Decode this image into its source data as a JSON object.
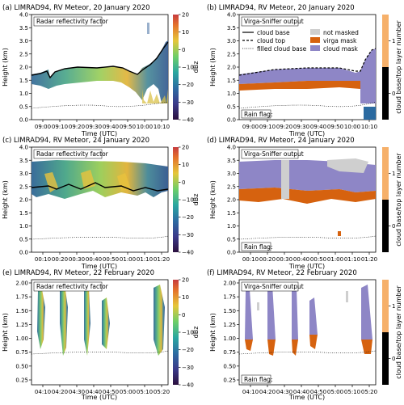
{
  "chart_data": [
    {
      "type": "heatmap",
      "title": "(a) LIMRAD94, RV Meteor, 20 January 2020",
      "box_label": "Radar reflectivity factor",
      "xlabel": "Time (UTC)",
      "ylabel": "Height (km)",
      "x_ticks": [
        "09:00",
        "09:10",
        "09:20",
        "09:30",
        "09:40",
        "09:50",
        "10:00",
        "10:10"
      ],
      "y_ticks": [
        "0.0",
        "0.5",
        "1.0",
        "1.5",
        "2.0",
        "2.5",
        "3.0",
        "3.5",
        "4.0"
      ],
      "ylim": [
        0,
        4.0
      ],
      "colorbar": {
        "label": "dBz",
        "ticks": [
          "20",
          "10",
          "0",
          "−10",
          "−20",
          "−30",
          "−40"
        ],
        "range": [
          -40,
          20
        ]
      }
    },
    {
      "type": "heatmap",
      "title": "(b) LIMRAD94, RV Meteor, 20 January 2020",
      "box_label": "Virga-Sniffer output",
      "xlabel": "Time (UTC)",
      "ylabel": "Height (km)",
      "x_ticks": [
        "09:00",
        "09:10",
        "09:20",
        "09:30",
        "09:40",
        "09:50",
        "10:00",
        "10:10"
      ],
      "y_ticks": [
        "0.0",
        "0.5",
        "1.0",
        "1.5",
        "2.0",
        "2.5",
        "3.0",
        "3.5",
        "4.0"
      ],
      "ylim": [
        0,
        4.0
      ],
      "rain_flag_label": "Rain flag:",
      "legend": {
        "lines": [
          "cloud base",
          "cloud top",
          "filled cloud base"
        ],
        "patches": [
          {
            "label": "not masked",
            "color": "#cfcfcf"
          },
          {
            "label": "virga mask",
            "color": "#d6620f"
          },
          {
            "label": "cloud mask",
            "color": "#8e86c6"
          }
        ]
      },
      "colorbar": {
        "label": "cloud base/top layer number",
        "ticks": [
          "1",
          "0"
        ]
      }
    },
    {
      "type": "heatmap",
      "title": "(c) LIMRAD94, RV Meteor, 24 January 2020",
      "box_label": "Radar reflectivity factor",
      "xlabel": "Time (UTC)",
      "ylabel": "Height (km)",
      "x_ticks": [
        "00:10",
        "00:20",
        "00:30",
        "00:40",
        "00:50",
        "01:00",
        "01:10",
        "01:20"
      ],
      "y_ticks": [
        "0.0",
        "0.5",
        "1.0",
        "1.5",
        "2.0",
        "2.5",
        "3.0",
        "3.5",
        "4.0"
      ],
      "ylim": [
        0,
        4.0
      ],
      "colorbar": {
        "label": "dBz",
        "ticks": [
          "20",
          "10",
          "0",
          "−10",
          "−20",
          "−30",
          "−40"
        ],
        "range": [
          -40,
          20
        ]
      }
    },
    {
      "type": "heatmap",
      "title": "(d) LIMRAD94, RV Meteor, 24 January 2020",
      "box_label": "Virga-Sniffer output",
      "xlabel": "Time (UTC)",
      "ylabel": "Height (km)",
      "x_ticks": [
        "00:10",
        "00:20",
        "00:30",
        "00:40",
        "00:50",
        "01:00",
        "01:10",
        "01:20"
      ],
      "y_ticks": [
        "0.0",
        "0.5",
        "1.0",
        "1.5",
        "2.0",
        "2.5",
        "3.0",
        "3.5",
        "4.0"
      ],
      "ylim": [
        0,
        4.0
      ],
      "rain_flag_label": "Rain flag:",
      "colorbar": {
        "label": "cloud base/top layer number",
        "ticks": [
          "1",
          "0"
        ]
      }
    },
    {
      "type": "heatmap",
      "title": "(e) LIMRAD94, RV Meteor, 22 February 2020",
      "box_label": "Radar reflectivity factor",
      "xlabel": "Time (UTC)",
      "ylabel": "Height (km)",
      "x_ticks": [
        "04:10",
        "04:20",
        "04:30",
        "04:40",
        "04:50",
        "05:00",
        "05:10",
        "05:20"
      ],
      "y_ticks": [
        "0.25",
        "0.50",
        "0.75",
        "1.00",
        "1.25",
        "1.50",
        "1.75",
        "2.00"
      ],
      "ylim": [
        0.25,
        2.0
      ],
      "colorbar": {
        "label": "dBz",
        "ticks": [
          "20",
          "10",
          "0",
          "−10",
          "−20",
          "−30",
          "−40"
        ],
        "range": [
          -40,
          20
        ]
      }
    },
    {
      "type": "heatmap",
      "title": "(f) LIMRAD94, RV Meteor, 22 February 2020",
      "box_label": "Virga-Sniffer output",
      "xlabel": "Time (UTC)",
      "ylabel": "Height (km)",
      "x_ticks": [
        "04:10",
        "04:20",
        "04:30",
        "04:40",
        "04:50",
        "05:00",
        "05:10",
        "05:20"
      ],
      "y_ticks": [
        "0.25",
        "0.50",
        "0.75",
        "1.00",
        "1.25",
        "1.50",
        "1.75",
        "2.00"
      ],
      "ylim": [
        0.25,
        2.0
      ],
      "rain_flag_label": "Rain flag:",
      "colorbar": {
        "label": "cloud base/top layer number",
        "ticks": [
          "1",
          "0"
        ]
      }
    }
  ],
  "colors": {
    "virga": "#d6620f",
    "cloud": "#8e86c6",
    "notmasked": "#cfcfcf",
    "layer1": "#f6b06a",
    "layer0": "#000000"
  }
}
